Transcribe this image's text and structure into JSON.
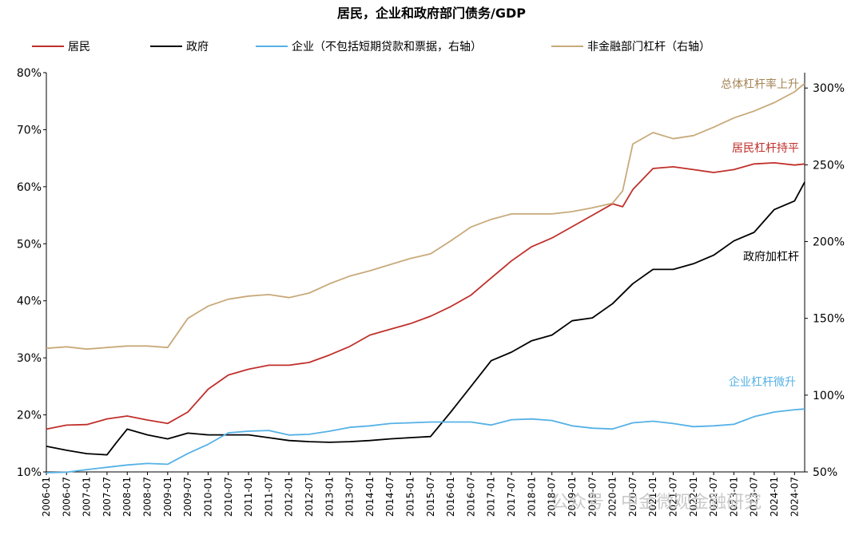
{
  "chart_data": {
    "type": "line",
    "title": "居民，企业和政府部门债务/GDP",
    "x_start": "2006-01",
    "x_end": "2024-10",
    "x_tick_labels": [
      "2006-01",
      "2006-07",
      "2007-01",
      "2007-07",
      "2008-01",
      "2008-07",
      "2009-01",
      "2009-07",
      "2010-01",
      "2010-07",
      "2011-01",
      "2011-07",
      "2012-01",
      "2012-07",
      "2013-01",
      "2013-07",
      "2014-01",
      "2014-07",
      "2015-01",
      "2015-07",
      "2016-01",
      "2016-07",
      "2017-01",
      "2017-07",
      "2018-01",
      "2018-07",
      "2019-01",
      "2019-07",
      "2020-01",
      "2020-07",
      "2021-01",
      "2021-07",
      "2022-01",
      "2022-07",
      "2023-01",
      "2023-07",
      "2024-01",
      "2024-07"
    ],
    "left_axis": {
      "ylim": [
        10,
        80
      ],
      "ticks": [
        "10%",
        "20%",
        "30%",
        "40%",
        "50%",
        "60%",
        "70%",
        "80%"
      ]
    },
    "right_axis": {
      "ylim": [
        50,
        310
      ],
      "ticks": [
        "50%",
        "100%",
        "150%",
        "200%",
        "250%",
        "300%"
      ]
    },
    "grid": false,
    "legend_position": "top",
    "series": [
      {
        "name": "居民",
        "color": "#c0302b",
        "axis": "left",
        "points": [
          [
            "2006-01",
            17.5
          ],
          [
            "2006-07",
            18.2
          ],
          [
            "2007-01",
            18.3
          ],
          [
            "2007-07",
            19.3
          ],
          [
            "2008-01",
            19.8
          ],
          [
            "2008-07",
            19.1
          ],
          [
            "2009-01",
            18.5
          ],
          [
            "2009-07",
            20.5
          ],
          [
            "2010-01",
            24.5
          ],
          [
            "2010-07",
            27.0
          ],
          [
            "2011-01",
            28.0
          ],
          [
            "2011-07",
            28.7
          ],
          [
            "2012-01",
            28.7
          ],
          [
            "2012-07",
            29.2
          ],
          [
            "2013-01",
            30.5
          ],
          [
            "2013-07",
            32.0
          ],
          [
            "2014-01",
            34.0
          ],
          [
            "2014-07",
            35.0
          ],
          [
            "2015-01",
            36.0
          ],
          [
            "2015-07",
            37.3
          ],
          [
            "2016-01",
            39.0
          ],
          [
            "2016-07",
            41.0
          ],
          [
            "2017-01",
            44.0
          ],
          [
            "2017-07",
            47.0
          ],
          [
            "2018-01",
            49.5
          ],
          [
            "2018-07",
            51.0
          ],
          [
            "2019-01",
            53.0
          ],
          [
            "2019-07",
            55.0
          ],
          [
            "2020-01",
            57.0
          ],
          [
            "2020-04",
            56.5
          ],
          [
            "2020-07",
            59.5
          ],
          [
            "2021-01",
            63.2
          ],
          [
            "2021-07",
            63.5
          ],
          [
            "2022-01",
            63.0
          ],
          [
            "2022-07",
            62.5
          ],
          [
            "2023-01",
            63.0
          ],
          [
            "2023-07",
            64.0
          ],
          [
            "2024-01",
            64.2
          ],
          [
            "2024-07",
            63.8
          ],
          [
            "2024-10",
            64.0
          ]
        ]
      },
      {
        "name": "政府",
        "color": "#000000",
        "axis": "left",
        "points": [
          [
            "2006-01",
            14.5
          ],
          [
            "2006-07",
            13.8
          ],
          [
            "2007-01",
            13.2
          ],
          [
            "2007-07",
            13.0
          ],
          [
            "2007-10",
            15.3
          ],
          [
            "2008-01",
            17.5
          ],
          [
            "2008-07",
            16.5
          ],
          [
            "2009-01",
            15.8
          ],
          [
            "2009-07",
            16.8
          ],
          [
            "2010-01",
            16.5
          ],
          [
            "2010-07",
            16.5
          ],
          [
            "2011-01",
            16.5
          ],
          [
            "2011-07",
            16.0
          ],
          [
            "2012-01",
            15.5
          ],
          [
            "2012-07",
            15.3
          ],
          [
            "2013-01",
            15.2
          ],
          [
            "2013-07",
            15.3
          ],
          [
            "2014-01",
            15.5
          ],
          [
            "2014-07",
            15.8
          ],
          [
            "2015-01",
            16.0
          ],
          [
            "2015-07",
            16.2
          ],
          [
            "2016-01",
            20.5
          ],
          [
            "2016-07",
            25.0
          ],
          [
            "2017-01",
            29.5
          ],
          [
            "2017-07",
            31.0
          ],
          [
            "2018-01",
            33.0
          ],
          [
            "2018-07",
            34.0
          ],
          [
            "2019-01",
            36.5
          ],
          [
            "2019-07",
            37.0
          ],
          [
            "2020-01",
            39.5
          ],
          [
            "2020-07",
            43.0
          ],
          [
            "2021-01",
            45.5
          ],
          [
            "2021-07",
            45.5
          ],
          [
            "2022-01",
            46.5
          ],
          [
            "2022-07",
            48.0
          ],
          [
            "2023-01",
            50.5
          ],
          [
            "2023-07",
            52.0
          ],
          [
            "2024-01",
            56.0
          ],
          [
            "2024-07",
            57.5
          ],
          [
            "2024-10",
            60.8
          ]
        ]
      },
      {
        "name": "企业（不包括短期贷款和票据，右轴）",
        "color": "#55b1e6",
        "axis": "right",
        "points": [
          [
            "2006-01",
            49.5
          ],
          [
            "2006-07",
            49.8
          ],
          [
            "2007-01",
            51.5
          ],
          [
            "2007-07",
            53.0
          ],
          [
            "2008-01",
            54.5
          ],
          [
            "2008-07",
            55.5
          ],
          [
            "2009-01",
            55.0
          ],
          [
            "2009-07",
            62.0
          ],
          [
            "2010-01",
            68.0
          ],
          [
            "2010-07",
            75.5
          ],
          [
            "2011-01",
            76.5
          ],
          [
            "2011-07",
            77.0
          ],
          [
            "2012-01",
            74.0
          ],
          [
            "2012-07",
            74.5
          ],
          [
            "2013-01",
            76.5
          ],
          [
            "2013-07",
            79.0
          ],
          [
            "2014-01",
            80.0
          ],
          [
            "2014-07",
            81.5
          ],
          [
            "2015-01",
            82.0
          ],
          [
            "2015-07",
            82.5
          ],
          [
            "2016-01",
            82.5
          ],
          [
            "2016-07",
            82.5
          ],
          [
            "2017-01",
            80.5
          ],
          [
            "2017-07",
            84.0
          ],
          [
            "2018-01",
            84.5
          ],
          [
            "2018-07",
            83.5
          ],
          [
            "2019-01",
            80.0
          ],
          [
            "2019-07",
            78.5
          ],
          [
            "2020-01",
            78.0
          ],
          [
            "2020-07",
            82.0
          ],
          [
            "2021-01",
            83.0
          ],
          [
            "2021-07",
            81.5
          ],
          [
            "2022-01",
            79.5
          ],
          [
            "2022-07",
            80.0
          ],
          [
            "2023-01",
            81.0
          ],
          [
            "2023-07",
            86.0
          ],
          [
            "2024-01",
            89.0
          ],
          [
            "2024-07",
            90.5
          ],
          [
            "2024-10",
            91.0
          ]
        ]
      },
      {
        "name": "非金融部门杠杆（右轴）",
        "color": "#c8aa7a",
        "axis": "right",
        "points": [
          [
            "2006-01",
            130.5
          ],
          [
            "2006-07",
            131.5
          ],
          [
            "2007-01",
            130.0
          ],
          [
            "2007-07",
            131.0
          ],
          [
            "2008-01",
            132.0
          ],
          [
            "2008-07",
            132.0
          ],
          [
            "2009-01",
            131.0
          ],
          [
            "2009-07",
            150.0
          ],
          [
            "2010-01",
            158.0
          ],
          [
            "2010-07",
            162.5
          ],
          [
            "2011-01",
            164.5
          ],
          [
            "2011-07",
            165.5
          ],
          [
            "2012-01",
            163.5
          ],
          [
            "2012-07",
            166.5
          ],
          [
            "2013-01",
            172.5
          ],
          [
            "2013-07",
            177.5
          ],
          [
            "2014-01",
            181.0
          ],
          [
            "2014-07",
            185.0
          ],
          [
            "2015-01",
            189.0
          ],
          [
            "2015-07",
            192.0
          ],
          [
            "2016-01",
            200.5
          ],
          [
            "2016-07",
            209.5
          ],
          [
            "2017-01",
            214.5
          ],
          [
            "2017-07",
            218.0
          ],
          [
            "2018-01",
            218.0
          ],
          [
            "2018-07",
            218.0
          ],
          [
            "2019-01",
            219.5
          ],
          [
            "2019-07",
            222.0
          ],
          [
            "2020-01",
            225.0
          ],
          [
            "2020-04",
            233.0
          ],
          [
            "2020-07",
            263.5
          ],
          [
            "2021-01",
            271.0
          ],
          [
            "2021-07",
            267.0
          ],
          [
            "2022-01",
            269.0
          ],
          [
            "2022-07",
            274.5
          ],
          [
            "2023-01",
            280.5
          ],
          [
            "2023-07",
            285.0
          ],
          [
            "2024-01",
            290.5
          ],
          [
            "2024-07",
            297.5
          ],
          [
            "2024-10",
            303.0
          ]
        ]
      }
    ],
    "annotations": [
      {
        "text": "总体杠杆率上升",
        "color": "#a58555"
      },
      {
        "text": "居民杠杆持平",
        "color": "#c0302b"
      },
      {
        "text": "政府加杠杆",
        "color": "#000000"
      },
      {
        "text": "企业杠杆微升",
        "color": "#55b1e6"
      }
    ],
    "watermark": "公众号 · 中金微观金融研究"
  }
}
